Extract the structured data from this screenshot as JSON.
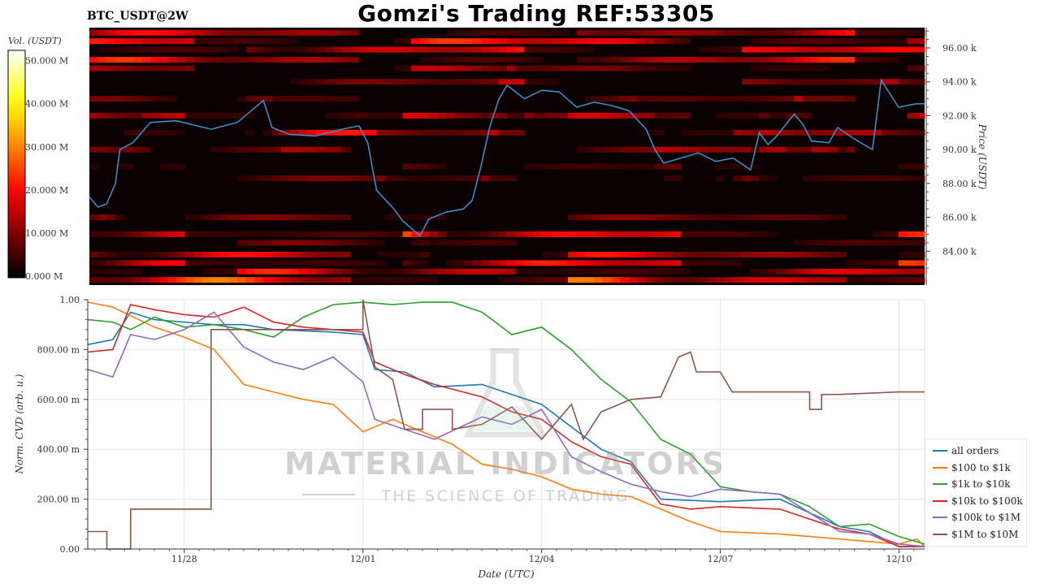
{
  "header": {
    "title": "Gomzi's Trading REF:53305",
    "pair": "BTC_USDT@2W"
  },
  "watermark": {
    "brand": "MATERIAL INDICATORS",
    "tagline": "THE SCIENCE OF TRADING"
  },
  "chart_data": [
    {
      "type": "heatmap",
      "colorbar": {
        "label": "Vol. (USDT)",
        "ticks": [
          "0.000 M",
          "10.000 M",
          "20.000 M",
          "30.000 M",
          "40.000 M",
          "50.000 M"
        ],
        "range": [
          0,
          52
        ]
      },
      "y_axis": {
        "label": "Price (USDT)",
        "ticks": [
          "84.00 k",
          "86.00 k",
          "88.00 k",
          "90.00 k",
          "92.00 k",
          "94.00 k",
          "96.00 k"
        ],
        "range": [
          82,
          97.2
        ]
      },
      "price_series": {
        "color": "#3b8bc6",
        "points": [
          [
            0,
            87.2
          ],
          [
            1,
            86.6
          ],
          [
            2,
            86.8
          ],
          [
            3,
            88
          ],
          [
            3.5,
            90
          ],
          [
            5,
            90.4
          ],
          [
            7,
            91.6
          ],
          [
            10,
            91.7
          ],
          [
            14,
            91.2
          ],
          [
            17,
            91.6
          ],
          [
            20,
            92.9
          ],
          [
            21,
            91.3
          ],
          [
            23,
            90.9
          ],
          [
            26,
            90.8
          ],
          [
            29,
            91.2
          ],
          [
            31,
            91.4
          ],
          [
            32,
            90.4
          ],
          [
            33,
            87.6
          ],
          [
            35,
            86.5
          ],
          [
            36,
            85.8
          ],
          [
            38,
            84.9
          ],
          [
            39,
            85.9
          ],
          [
            41,
            86.3
          ],
          [
            43,
            86.5
          ],
          [
            44,
            87
          ],
          [
            45,
            89
          ],
          [
            46,
            91.3
          ],
          [
            47,
            92.9
          ],
          [
            48,
            93.8
          ],
          [
            50,
            93
          ],
          [
            52,
            93.5
          ],
          [
            54,
            93.4
          ],
          [
            56,
            92.5
          ],
          [
            58,
            92.8
          ],
          [
            60,
            92.6
          ],
          [
            62,
            92.3
          ],
          [
            64,
            91.2
          ],
          [
            65,
            90
          ],
          [
            66,
            89.2
          ],
          [
            68,
            89.5
          ],
          [
            70,
            89.8
          ],
          [
            72,
            89.3
          ],
          [
            74,
            89.5
          ],
          [
            76,
            88.8
          ],
          [
            77,
            91
          ],
          [
            78,
            90.3
          ],
          [
            79,
            90.8
          ],
          [
            81,
            92.1
          ],
          [
            82,
            91.5
          ],
          [
            83,
            90.5
          ],
          [
            85,
            90.4
          ],
          [
            86,
            91.3
          ],
          [
            88,
            90.6
          ],
          [
            90,
            90
          ],
          [
            91,
            94.1
          ],
          [
            93,
            92.5
          ],
          [
            95,
            92.7
          ],
          [
            96,
            92.7
          ]
        ]
      },
      "volume_bands": [
        {
          "price": 96.9,
          "vol": 22
        },
        {
          "price": 96.4,
          "vol": 28
        },
        {
          "price": 95.9,
          "vol": 25
        },
        {
          "price": 95.3,
          "vol": 24
        },
        {
          "price": 94.8,
          "vol": 16
        },
        {
          "price": 94.0,
          "vol": 12
        },
        {
          "price": 93.0,
          "vol": 10
        },
        {
          "price": 92.0,
          "vol": 18
        },
        {
          "price": 91.0,
          "vol": 14
        },
        {
          "price": 90.0,
          "vol": 11
        },
        {
          "price": 89.0,
          "vol": 8
        },
        {
          "price": 88.3,
          "vol": 10
        },
        {
          "price": 86.0,
          "vol": 12
        },
        {
          "price": 85.0,
          "vol": 28
        },
        {
          "price": 84.5,
          "vol": 10
        },
        {
          "price": 83.8,
          "vol": 22
        },
        {
          "price": 83.3,
          "vol": 26
        },
        {
          "price": 82.8,
          "vol": 24
        },
        {
          "price": 82.3,
          "vol": 30
        }
      ]
    },
    {
      "type": "line",
      "x_axis": {
        "label": "Date (UTC)",
        "ticks": [
          {
            "day": 2.0,
            "label": "11/28"
          },
          {
            "day": 5.0,
            "label": "12/01"
          },
          {
            "day": 8.0,
            "label": "12/04"
          },
          {
            "day": 11.0,
            "label": "12/07"
          },
          {
            "day": 14.0,
            "label": "12/10"
          }
        ],
        "range": [
          0.38,
          14.43
        ]
      },
      "y_axis": {
        "label": "Norm. CVD (arb. u.)",
        "ticks": [
          "0.00",
          "200.00 m",
          "400.00 m",
          "600.00 m",
          "800.00 m",
          "1.00"
        ],
        "range": [
          0,
          1
        ]
      },
      "series": [
        {
          "name": "all orders",
          "color": "#1f77b4",
          "points": [
            [
              0.38,
              0.82
            ],
            [
              0.8,
              0.84
            ],
            [
              1.1,
              0.95
            ],
            [
              1.5,
              0.92
            ],
            [
              2.5,
              0.9
            ],
            [
              3.0,
              0.9
            ],
            [
              3.5,
              0.88
            ],
            [
              4.5,
              0.87
            ],
            [
              5.0,
              0.86
            ],
            [
              5.2,
              0.72
            ],
            [
              5.7,
              0.71
            ],
            [
              6.2,
              0.65
            ],
            [
              7.0,
              0.66
            ],
            [
              7.5,
              0.62
            ],
            [
              8.0,
              0.58
            ],
            [
              8.5,
              0.49
            ],
            [
              9.0,
              0.4
            ],
            [
              9.5,
              0.35
            ],
            [
              10.0,
              0.2
            ],
            [
              11.0,
              0.19
            ],
            [
              12.0,
              0.2
            ],
            [
              13.0,
              0.09
            ],
            [
              13.5,
              0.07
            ],
            [
              14.0,
              0.01
            ],
            [
              14.43,
              0.01
            ]
          ]
        },
        {
          "name": "$100 to $1k",
          "color": "#ff7f0e",
          "points": [
            [
              0.38,
              0.99
            ],
            [
              0.8,
              0.97
            ],
            [
              1.5,
              0.89
            ],
            [
              2.0,
              0.85
            ],
            [
              2.5,
              0.8
            ],
            [
              3.0,
              0.66
            ],
            [
              3.5,
              0.63
            ],
            [
              4.0,
              0.6
            ],
            [
              4.5,
              0.58
            ],
            [
              5.0,
              0.47
            ],
            [
              5.5,
              0.52
            ],
            [
              6.0,
              0.47
            ],
            [
              6.5,
              0.42
            ],
            [
              7.0,
              0.34
            ],
            [
              7.5,
              0.32
            ],
            [
              8.0,
              0.29
            ],
            [
              8.5,
              0.24
            ],
            [
              9.0,
              0.22
            ],
            [
              9.5,
              0.21
            ],
            [
              10.0,
              0.16
            ],
            [
              10.5,
              0.11
            ],
            [
              11.0,
              0.07
            ],
            [
              12.0,
              0.06
            ],
            [
              13.0,
              0.04
            ],
            [
              14.0,
              0.02
            ],
            [
              14.3,
              0.04
            ],
            [
              14.43,
              0.01
            ]
          ]
        },
        {
          "name": "$1k to $10k",
          "color": "#2ca02c",
          "points": [
            [
              0.38,
              0.92
            ],
            [
              0.8,
              0.91
            ],
            [
              1.1,
              0.88
            ],
            [
              1.5,
              0.93
            ],
            [
              2.0,
              0.89
            ],
            [
              2.5,
              0.9
            ],
            [
              3.0,
              0.88
            ],
            [
              3.5,
              0.85
            ],
            [
              4.0,
              0.93
            ],
            [
              4.5,
              0.98
            ],
            [
              5.0,
              0.99
            ],
            [
              5.5,
              0.98
            ],
            [
              6.0,
              0.99
            ],
            [
              6.5,
              0.99
            ],
            [
              7.0,
              0.95
            ],
            [
              7.5,
              0.86
            ],
            [
              8.0,
              0.89
            ],
            [
              8.5,
              0.8
            ],
            [
              9.0,
              0.68
            ],
            [
              9.5,
              0.59
            ],
            [
              10.0,
              0.44
            ],
            [
              10.5,
              0.38
            ],
            [
              11.0,
              0.25
            ],
            [
              11.5,
              0.23
            ],
            [
              12.0,
              0.22
            ],
            [
              12.5,
              0.17
            ],
            [
              13.0,
              0.09
            ],
            [
              13.5,
              0.1
            ],
            [
              14.0,
              0.05
            ],
            [
              14.43,
              0.02
            ]
          ]
        },
        {
          "name": "$10k to $100k",
          "color": "#d62728",
          "points": [
            [
              0.38,
              0.79
            ],
            [
              0.8,
              0.8
            ],
            [
              1.1,
              0.98
            ],
            [
              1.5,
              0.96
            ],
            [
              2.0,
              0.94
            ],
            [
              2.5,
              0.93
            ],
            [
              3.0,
              0.97
            ],
            [
              3.5,
              0.91
            ],
            [
              4.0,
              0.89
            ],
            [
              4.5,
              0.88
            ],
            [
              5.0,
              0.87
            ],
            [
              5.2,
              0.75
            ],
            [
              5.7,
              0.7
            ],
            [
              6.2,
              0.66
            ],
            [
              7.0,
              0.61
            ],
            [
              7.5,
              0.55
            ],
            [
              8.0,
              0.52
            ],
            [
              8.5,
              0.43
            ],
            [
              9.0,
              0.37
            ],
            [
              9.5,
              0.34
            ],
            [
              10.0,
              0.18
            ],
            [
              10.5,
              0.16
            ],
            [
              11.0,
              0.17
            ],
            [
              12.0,
              0.16
            ],
            [
              13.0,
              0.08
            ],
            [
              13.5,
              0.06
            ],
            [
              14.0,
              0.01
            ],
            [
              14.43,
              0.01
            ]
          ]
        },
        {
          "name": "$100k to $1M",
          "color": "#9467bd",
          "points": [
            [
              0.38,
              0.72
            ],
            [
              0.8,
              0.69
            ],
            [
              1.1,
              0.86
            ],
            [
              1.5,
              0.84
            ],
            [
              2.0,
              0.88
            ],
            [
              2.5,
              0.95
            ],
            [
              3.0,
              0.81
            ],
            [
              3.5,
              0.75
            ],
            [
              4.0,
              0.72
            ],
            [
              4.5,
              0.77
            ],
            [
              5.0,
              0.67
            ],
            [
              5.2,
              0.52
            ],
            [
              5.7,
              0.48
            ],
            [
              6.2,
              0.44
            ],
            [
              7.0,
              0.53
            ],
            [
              7.5,
              0.5
            ],
            [
              8.0,
              0.56
            ],
            [
              8.5,
              0.37
            ],
            [
              9.0,
              0.31
            ],
            [
              9.5,
              0.26
            ],
            [
              10.0,
              0.23
            ],
            [
              10.5,
              0.21
            ],
            [
              11.0,
              0.24
            ],
            [
              12.0,
              0.22
            ],
            [
              13.0,
              0.07
            ],
            [
              13.5,
              0.06
            ],
            [
              14.0,
              0.02
            ],
            [
              14.43,
              0.01
            ]
          ]
        },
        {
          "name": "$1M to $10M",
          "color": "#8c564b",
          "points": [
            [
              0.38,
              0.07
            ],
            [
              0.7,
              0.07
            ],
            [
              0.7,
              0.0
            ],
            [
              1.1,
              0.0
            ],
            [
              1.1,
              0.16
            ],
            [
              2.1,
              0.16
            ],
            [
              2.1,
              0.16
            ],
            [
              2.45,
              0.16
            ],
            [
              2.45,
              0.88
            ],
            [
              5.0,
              0.88
            ],
            [
              5.0,
              1.0
            ],
            [
              5.2,
              0.73
            ],
            [
              5.5,
              0.68
            ],
            [
              5.7,
              0.48
            ],
            [
              6.0,
              0.48
            ],
            [
              6.0,
              0.56
            ],
            [
              6.5,
              0.56
            ],
            [
              6.5,
              0.48
            ],
            [
              7.0,
              0.5
            ],
            [
              7.5,
              0.57
            ],
            [
              8.0,
              0.44
            ],
            [
              8.5,
              0.58
            ],
            [
              8.7,
              0.44
            ],
            [
              9.0,
              0.55
            ],
            [
              9.5,
              0.6
            ],
            [
              10.0,
              0.61
            ],
            [
              10.3,
              0.77
            ],
            [
              10.5,
              0.79
            ],
            [
              10.6,
              0.71
            ],
            [
              11.0,
              0.71
            ],
            [
              11.2,
              0.63
            ],
            [
              12.0,
              0.63
            ],
            [
              12.5,
              0.63
            ],
            [
              12.5,
              0.56
            ],
            [
              12.7,
              0.56
            ],
            [
              12.7,
              0.62
            ],
            [
              13.0,
              0.62
            ],
            [
              14.0,
              0.63
            ],
            [
              14.43,
              0.63
            ]
          ]
        }
      ]
    }
  ]
}
